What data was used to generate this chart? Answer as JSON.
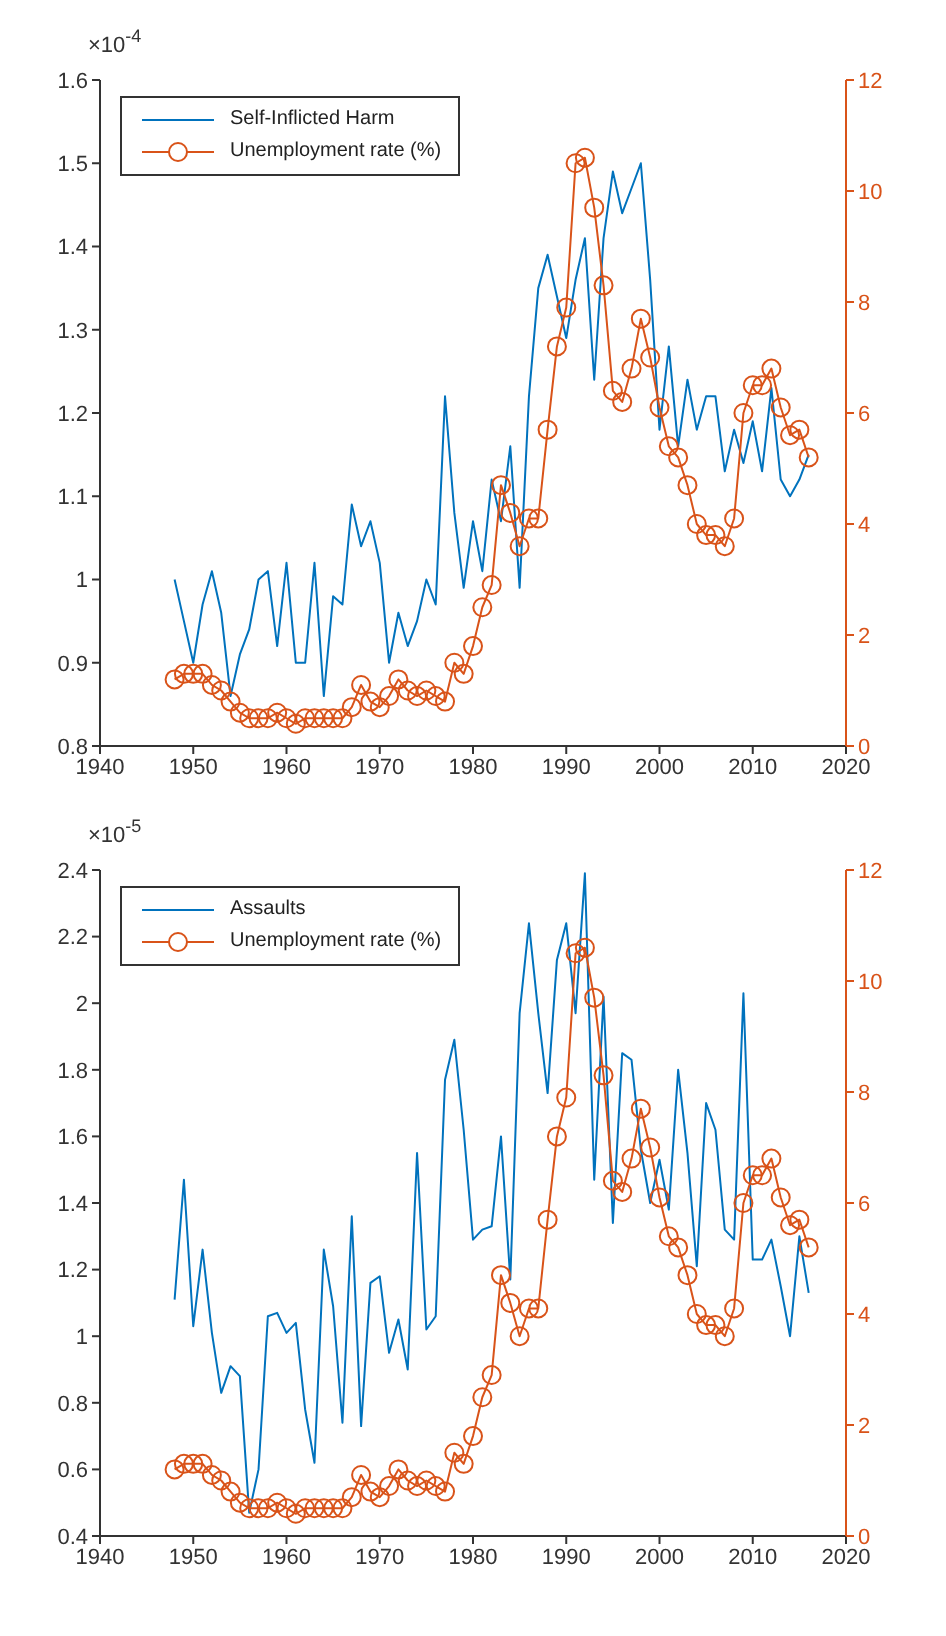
{
  "chart_data": [
    {
      "type": "line",
      "legend": "top left",
      "annotations": [
        "×10$^{-4}$"
      ],
      "x": [
        1948,
        1949,
        1950,
        1951,
        1952,
        1953,
        1954,
        1955,
        1956,
        1957,
        1958,
        1959,
        1960,
        1961,
        1962,
        1963,
        1964,
        1965,
        1966,
        1967,
        1968,
        1969,
        1970,
        1971,
        1972,
        1973,
        1974,
        1975,
        1976,
        1977,
        1978,
        1979,
        1980,
        1981,
        1982,
        1983,
        1984,
        1985,
        1986,
        1987,
        1988,
        1989,
        1990,
        1991,
        1992,
        1993,
        1994,
        1995,
        1996,
        1997,
        1998,
        1999,
        2000,
        2001,
        2002,
        2003,
        2004,
        2005,
        2006,
        2007,
        2008,
        2009,
        2010,
        2011,
        2012,
        2013,
        2014,
        2015,
        2016
      ],
      "xlim": [
        1940,
        2020
      ],
      "xticks": [
        1940,
        1950,
        1960,
        1970,
        1980,
        1990,
        2000,
        2010,
        2020
      ],
      "ylim": [
        0.8,
        1.6
      ],
      "yticks": [
        0.8,
        0.9,
        1,
        1.1,
        1.2,
        1.3,
        1.4,
        1.5,
        1.6
      ],
      "y2lim": [
        0,
        12
      ],
      "y2ticks": [
        0,
        2,
        4,
        6,
        8,
        10,
        12
      ],
      "series": [
        {
          "name": "Self-Inflicted Harm",
          "color": "#0072bd",
          "marker": "none",
          "values": [
            1.0,
            0.95,
            0.9,
            0.97,
            1.01,
            0.96,
            0.86,
            0.91,
            0.94,
            1.0,
            1.01,
            0.92,
            1.02,
            0.9,
            0.9,
            1.02,
            0.86,
            0.98,
            0.97,
            1.09,
            1.04,
            1.07,
            1.02,
            0.9,
            0.96,
            0.92,
            0.95,
            1.0,
            0.97,
            1.22,
            1.08,
            0.99,
            1.07,
            1.01,
            1.12,
            1.07,
            1.16,
            0.99,
            1.22,
            1.35,
            1.39,
            1.34,
            1.29,
            1.36,
            1.41,
            1.24,
            1.41,
            1.49,
            1.44,
            1.47,
            1.5,
            1.36,
            1.18,
            1.28,
            1.16,
            1.24,
            1.18,
            1.22,
            1.22,
            1.13,
            1.18,
            1.14,
            1.19,
            1.13,
            1.23,
            1.12,
            1.1,
            1.12,
            1.15
          ]
        },
        {
          "name": "Unemployment rate (%)",
          "color": "#d95319",
          "marker": "circle",
          "axis": "y2",
          "values": [
            1.2,
            1.3,
            1.3,
            1.3,
            1.1,
            1.0,
            0.8,
            0.6,
            0.5,
            0.5,
            0.5,
            0.6,
            0.5,
            0.4,
            0.5,
            0.5,
            0.5,
            0.5,
            0.5,
            0.7,
            1.1,
            0.8,
            0.7,
            0.9,
            1.2,
            1.0,
            0.9,
            1.0,
            0.9,
            0.8,
            1.5,
            1.3,
            1.8,
            2.5,
            2.9,
            4.7,
            4.2,
            3.6,
            4.1,
            4.1,
            5.7,
            7.2,
            7.9,
            10.5,
            10.6,
            9.7,
            8.3,
            6.4,
            6.2,
            6.8,
            7.7,
            7.0,
            6.1,
            5.4,
            5.2,
            4.7,
            4.0,
            3.8,
            3.8,
            3.6,
            4.1,
            6.0,
            6.5,
            6.5,
            6.8,
            6.1,
            5.6,
            5.7,
            5.2
          ]
        }
      ]
    },
    {
      "type": "line",
      "legend": "top left",
      "annotations": [
        "×10$^{-5}$"
      ],
      "x": [
        1948,
        1949,
        1950,
        1951,
        1952,
        1953,
        1954,
        1955,
        1956,
        1957,
        1958,
        1959,
        1960,
        1961,
        1962,
        1963,
        1964,
        1965,
        1966,
        1967,
        1968,
        1969,
        1970,
        1971,
        1972,
        1973,
        1974,
        1975,
        1976,
        1977,
        1978,
        1979,
        1980,
        1981,
        1982,
        1983,
        1984,
        1985,
        1986,
        1987,
        1988,
        1989,
        1990,
        1991,
        1992,
        1993,
        1994,
        1995,
        1996,
        1997,
        1998,
        1999,
        2000,
        2001,
        2002,
        2003,
        2004,
        2005,
        2006,
        2007,
        2008,
        2009,
        2010,
        2011,
        2012,
        2013,
        2014,
        2015,
        2016
      ],
      "xlim": [
        1940,
        2020
      ],
      "xticks": [
        1940,
        1950,
        1960,
        1970,
        1980,
        1990,
        2000,
        2010,
        2020
      ],
      "ylim": [
        0.4,
        2.4
      ],
      "yticks": [
        0.4,
        0.6,
        0.8,
        1,
        1.2,
        1.4,
        1.6,
        1.8,
        2,
        2.2,
        2.4
      ],
      "y2lim": [
        0,
        12
      ],
      "y2ticks": [
        0,
        2,
        4,
        6,
        8,
        10,
        12
      ],
      "series": [
        {
          "name": "Assaults",
          "color": "#0072bd",
          "marker": "none",
          "values": [
            1.11,
            1.47,
            1.03,
            1.26,
            1.01,
            0.83,
            0.91,
            0.88,
            0.47,
            0.6,
            1.06,
            1.07,
            1.01,
            1.04,
            0.78,
            0.62,
            1.26,
            1.09,
            0.74,
            1.36,
            0.73,
            1.16,
            1.18,
            0.95,
            1.05,
            0.9,
            1.55,
            1.02,
            1.06,
            1.77,
            1.89,
            1.62,
            1.29,
            1.32,
            1.33,
            1.6,
            1.17,
            1.97,
            2.24,
            1.97,
            1.73,
            2.13,
            2.24,
            1.97,
            2.39,
            1.47,
            2.02,
            1.34,
            1.85,
            1.83,
            1.56,
            1.4,
            1.53,
            1.38,
            1.8,
            1.55,
            1.21,
            1.7,
            1.62,
            1.32,
            1.29,
            2.03,
            1.23,
            1.23,
            1.29,
            1.15,
            1.0,
            1.3,
            1.13
          ]
        },
        {
          "name": "Unemployment rate (%)",
          "color": "#d95319",
          "marker": "circle",
          "axis": "y2",
          "values": [
            1.2,
            1.3,
            1.3,
            1.3,
            1.1,
            1.0,
            0.8,
            0.6,
            0.5,
            0.5,
            0.5,
            0.6,
            0.5,
            0.4,
            0.5,
            0.5,
            0.5,
            0.5,
            0.5,
            0.7,
            1.1,
            0.8,
            0.7,
            0.9,
            1.2,
            1.0,
            0.9,
            1.0,
            0.9,
            0.8,
            1.5,
            1.3,
            1.8,
            2.5,
            2.9,
            4.7,
            4.2,
            3.6,
            4.1,
            4.1,
            5.7,
            7.2,
            7.9,
            10.5,
            10.6,
            9.7,
            8.3,
            6.4,
            6.2,
            6.8,
            7.7,
            7.0,
            6.1,
            5.4,
            5.2,
            4.7,
            4.0,
            3.8,
            3.8,
            3.6,
            4.1,
            6.0,
            6.5,
            6.5,
            6.8,
            6.1,
            5.6,
            5.7,
            5.2
          ]
        }
      ]
    }
  ]
}
